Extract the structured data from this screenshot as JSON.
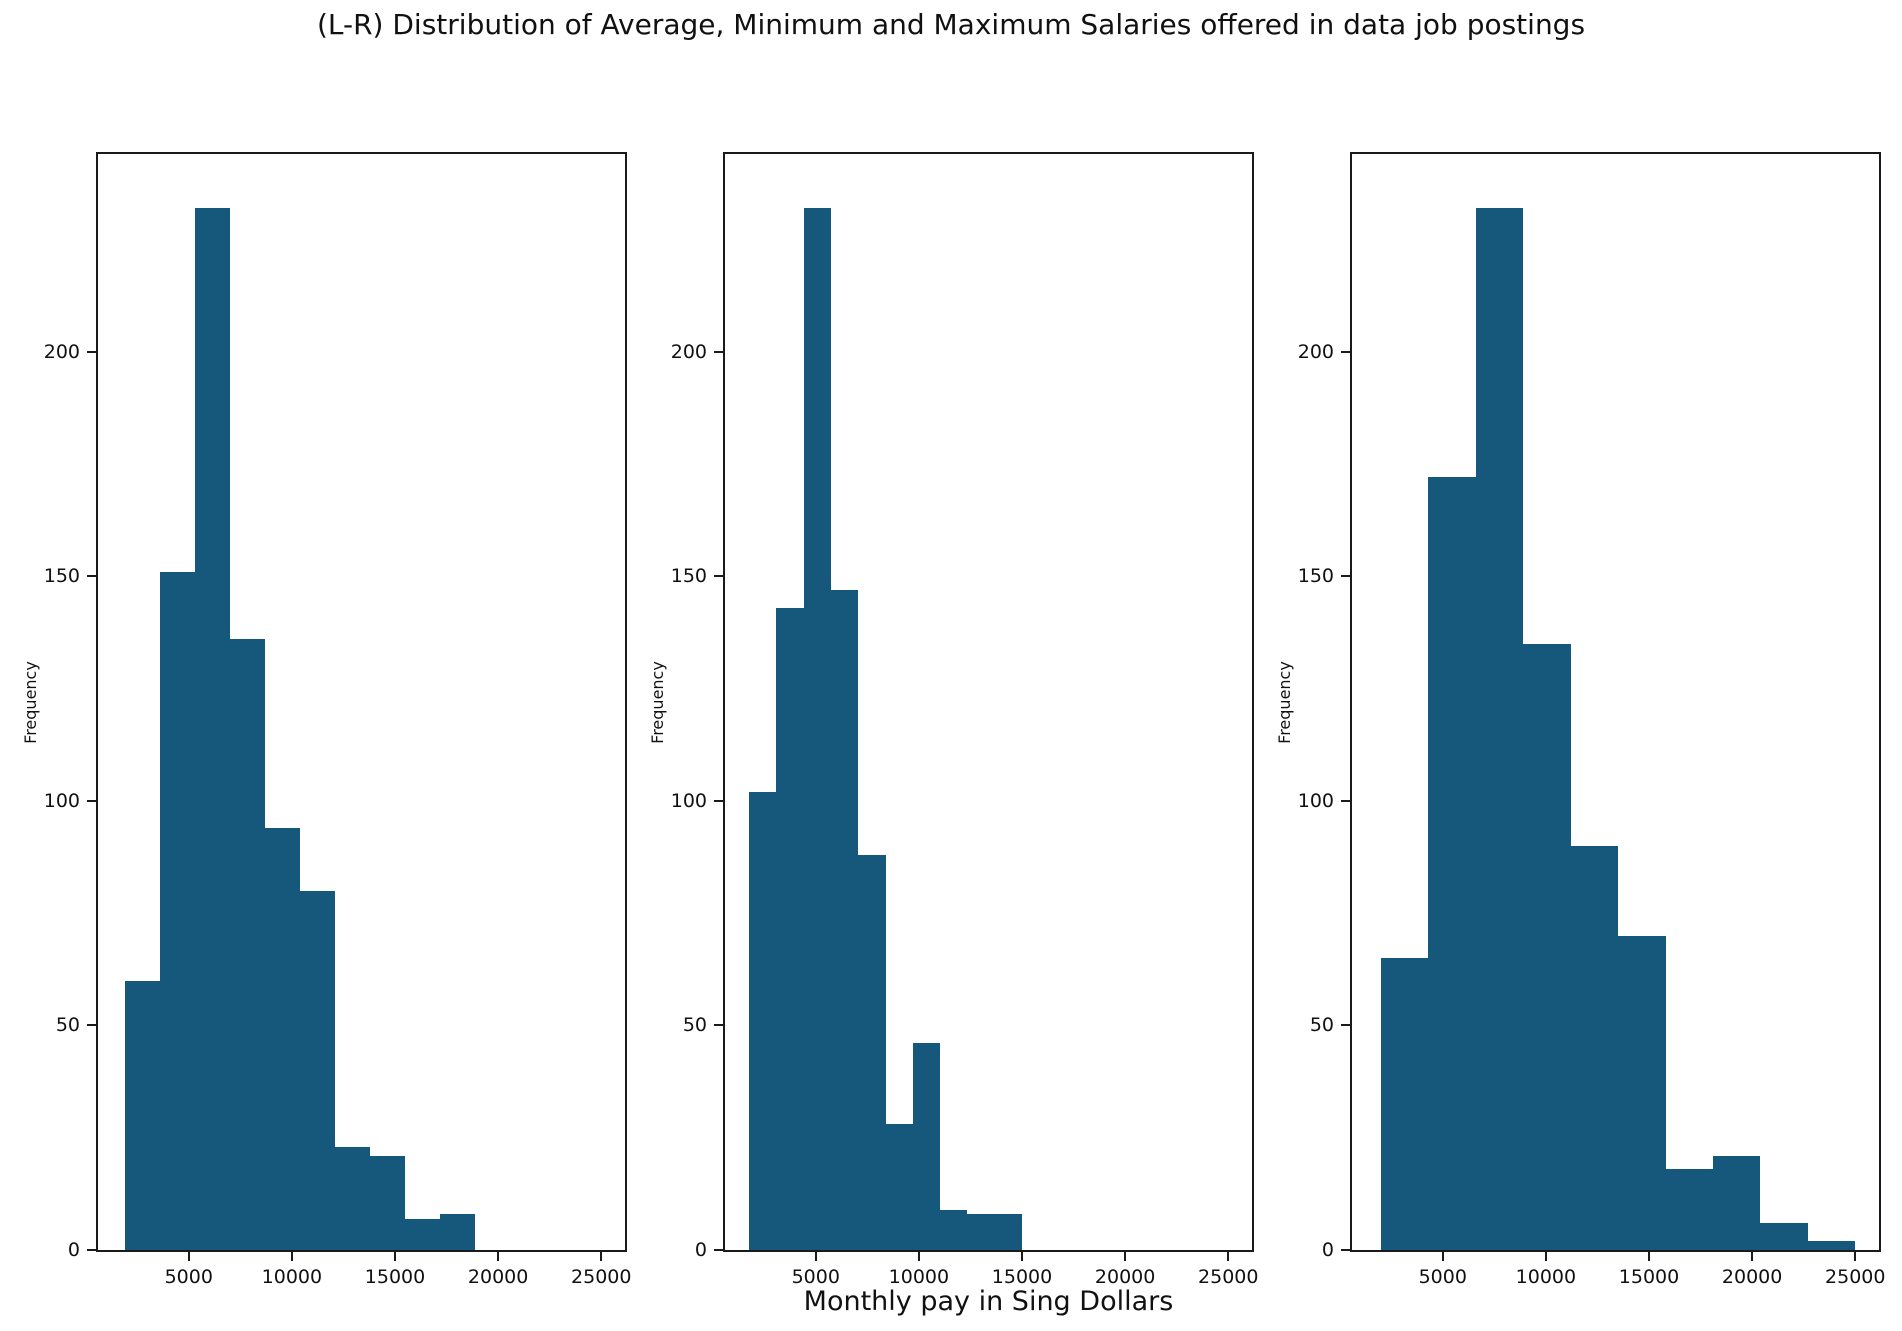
{
  "title": "(L-R) Distribution of Average, Minimum and Maximum Salaries offered in data job postings",
  "xlabel": "Monthly pay in Sing Dollars",
  "style": {
    "bar_color": "#16587c",
    "axis_color": "#1a1a1a",
    "text_color": "#111111"
  },
  "axes": {
    "xlim": [
      600,
      26150
    ],
    "ylim": [
      0,
      244
    ],
    "xticks": [
      5000,
      10000,
      15000,
      20000,
      25000
    ],
    "yticks": [
      0,
      50,
      100,
      150,
      200
    ],
    "grid": false,
    "legend": "none"
  },
  "chart_data": [
    {
      "type": "histogram",
      "name": "average-salary",
      "ylabel": "Frequency",
      "bin_start": 1890,
      "bin_width": 1697,
      "bin_end": 18860,
      "frequencies": [
        60,
        151,
        232,
        136,
        94,
        80,
        23,
        21,
        7,
        8
      ]
    },
    {
      "type": "histogram",
      "name": "minimum-salary",
      "ylabel": "Frequency",
      "bin_start": 1770,
      "bin_width": 1323,
      "bin_end": 15000,
      "frequencies": [
        102,
        143,
        232,
        147,
        88,
        28,
        46,
        9,
        8,
        8
      ]
    },
    {
      "type": "histogram",
      "name": "maximum-salary",
      "ylabel": "Frequency",
      "bin_start": 2000,
      "bin_width": 2300,
      "bin_end": 25000,
      "frequencies": [
        65,
        172,
        232,
        135,
        90,
        70,
        18,
        21,
        6,
        2
      ]
    }
  ]
}
